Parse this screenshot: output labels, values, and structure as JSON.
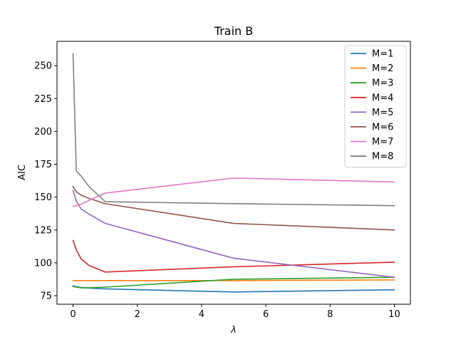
{
  "chart_data": {
    "type": "line",
    "title": "Train B",
    "xlabel": "λ",
    "ylabel": "AIC",
    "xlim": [
      -0.5,
      10.5
    ],
    "ylim": [
      68.5,
      268.5
    ],
    "xticks": [
      0,
      2,
      4,
      6,
      8,
      10
    ],
    "yticks": [
      75,
      100,
      125,
      150,
      175,
      200,
      225,
      250
    ],
    "x": [
      0,
      0.1,
      0.25,
      0.5,
      1,
      5,
      10
    ],
    "grid": false,
    "legend_position": "upper right",
    "series": [
      {
        "name": "M=1",
        "color": "#1f77b4",
        "values": [
          82.5,
          81.8,
          81.2,
          80.8,
          80.2,
          77.8,
          79.5
        ]
      },
      {
        "name": "M=2",
        "color": "#ff7f0e",
        "values": [
          86.5,
          86.5,
          86.5,
          86.5,
          86.5,
          86.5,
          87.0
        ]
      },
      {
        "name": "M=3",
        "color": "#2ca02c",
        "values": [
          82.0,
          81.5,
          81.0,
          81.0,
          81.5,
          87.5,
          89.0
        ]
      },
      {
        "name": "M=4",
        "color": "#d62728",
        "values": [
          117.0,
          110.0,
          103.0,
          98.0,
          93.0,
          97.0,
          100.5
        ]
      },
      {
        "name": "M=5",
        "color": "#9467bd",
        "values": [
          155.0,
          147.0,
          141.0,
          137.0,
          130.0,
          103.5,
          89.0
        ]
      },
      {
        "name": "M=6",
        "color": "#8c564b",
        "values": [
          158.0,
          154.0,
          151.5,
          149.0,
          145.0,
          130.0,
          125.0
        ]
      },
      {
        "name": "M=7",
        "color": "#e377c2",
        "values": [
          143.0,
          143.5,
          144.5,
          147.5,
          153.0,
          164.5,
          161.5
        ]
      },
      {
        "name": "M=8",
        "color": "#7f7f7f",
        "values": [
          259.0,
          170.0,
          166.0,
          158.0,
          146.5,
          145.0,
          143.5
        ]
      }
    ]
  }
}
